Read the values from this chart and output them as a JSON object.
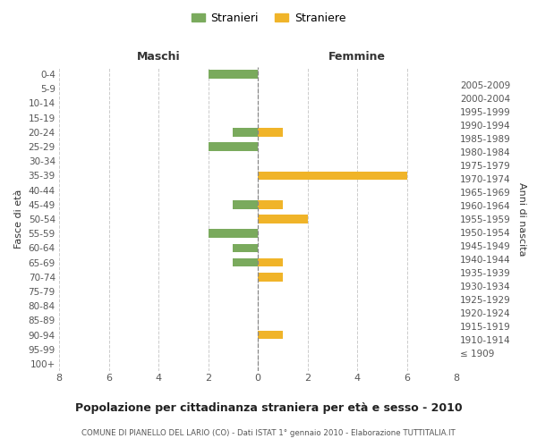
{
  "age_groups": [
    "100+",
    "95-99",
    "90-94",
    "85-89",
    "80-84",
    "75-79",
    "70-74",
    "65-69",
    "60-64",
    "55-59",
    "50-54",
    "45-49",
    "40-44",
    "35-39",
    "30-34",
    "25-29",
    "20-24",
    "15-19",
    "10-14",
    "5-9",
    "0-4"
  ],
  "birth_years": [
    "≤ 1909",
    "1910-1914",
    "1915-1919",
    "1920-1924",
    "1925-1929",
    "1930-1934",
    "1935-1939",
    "1940-1944",
    "1945-1949",
    "1950-1954",
    "1955-1959",
    "1960-1964",
    "1965-1969",
    "1970-1974",
    "1975-1979",
    "1980-1984",
    "1985-1989",
    "1990-1994",
    "1995-1999",
    "2000-2004",
    "2005-2009"
  ],
  "maschi": [
    0,
    0,
    0,
    0,
    0,
    0,
    0,
    1,
    1,
    2,
    0,
    1,
    0,
    0,
    0,
    2,
    1,
    0,
    0,
    0,
    2
  ],
  "femmine": [
    0,
    0,
    1,
    0,
    0,
    0,
    1,
    1,
    0,
    0,
    2,
    1,
    0,
    6,
    0,
    0,
    1,
    0,
    0,
    0,
    0
  ],
  "color_maschi": "#7aaa5d",
  "color_femmine": "#f0b429",
  "title": "Popolazione per cittadinanza straniera per età e sesso - 2010",
  "subtitle": "COMUNE DI PIANELLO DEL LARIO (CO) - Dati ISTAT 1° gennaio 2010 - Elaborazione TUTTITALIA.IT",
  "legend_maschi": "Stranieri",
  "legend_femmine": "Straniere",
  "xlabel_left": "Maschi",
  "xlabel_right": "Femmine",
  "ylabel_left": "Fasce di età",
  "ylabel_right": "Anni di nascita",
  "xlim": 8,
  "background_color": "#ffffff",
  "grid_color": "#cccccc"
}
